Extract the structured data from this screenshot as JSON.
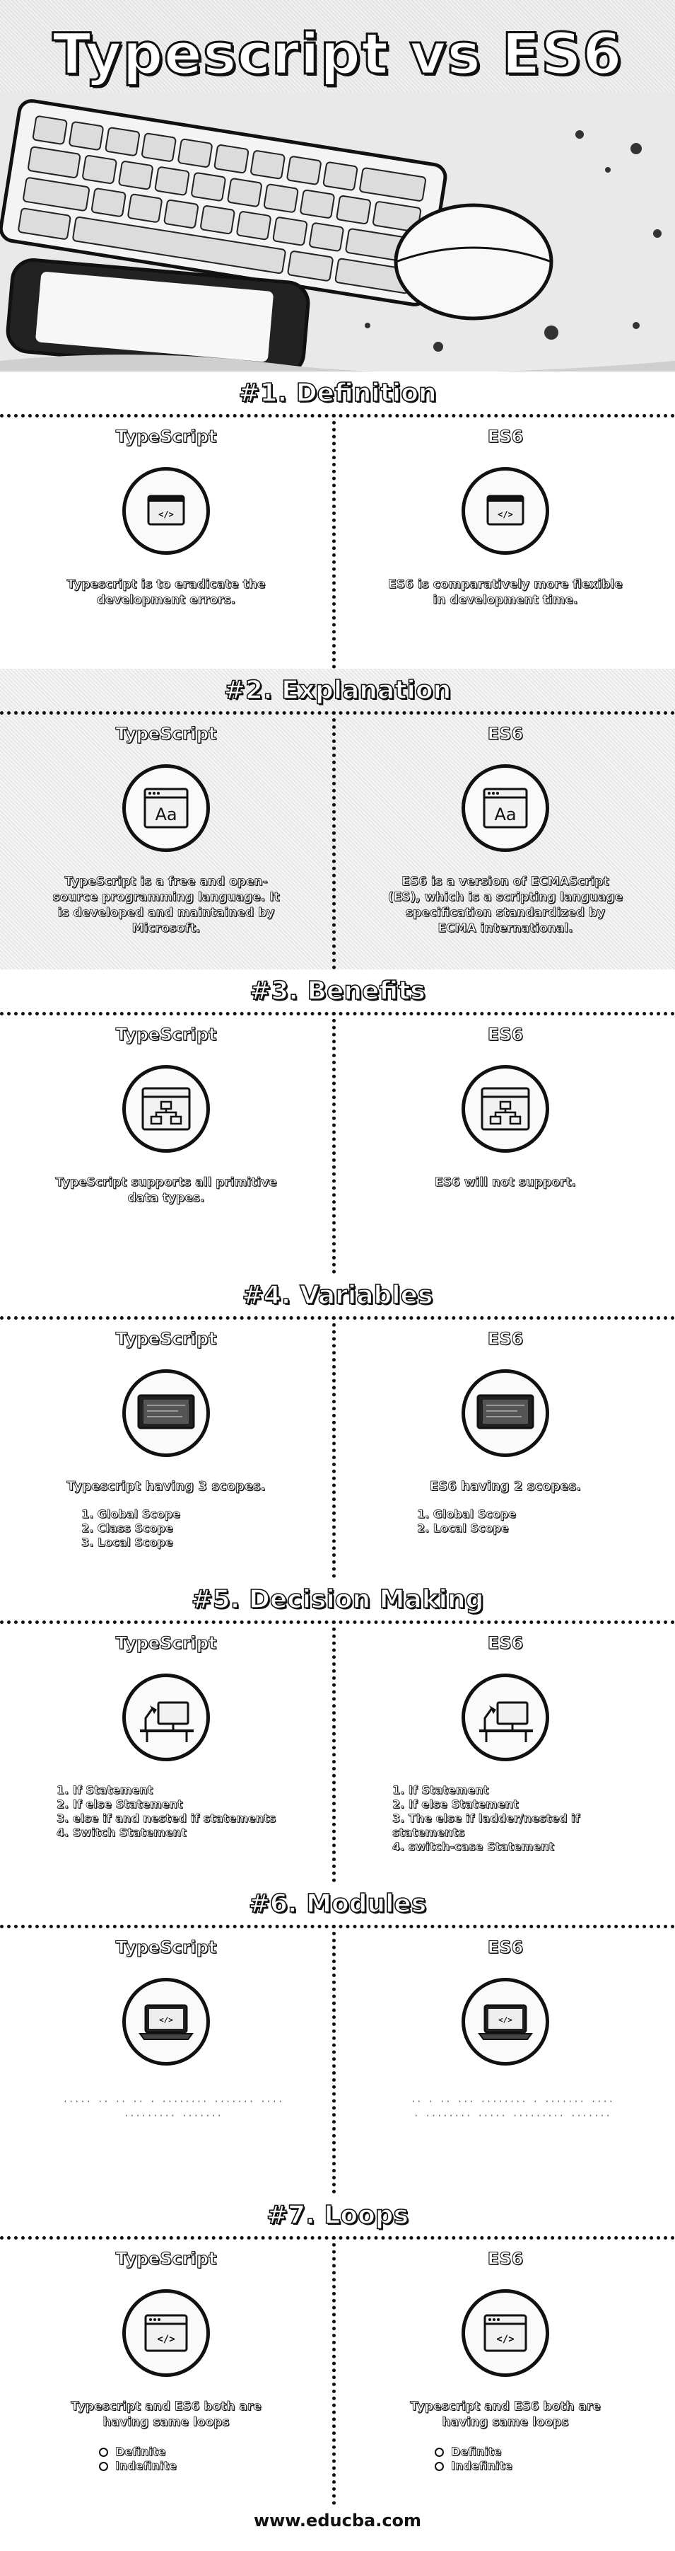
{
  "header": {
    "title": "Typescript vs ES6"
  },
  "sections": [
    {
      "title": "#1. Definition",
      "left": {
        "heading": "TypeScript",
        "text": "Typescript is to eradicate the development errors."
      },
      "right": {
        "heading": "ES6",
        "text": "ES6 is comparatively more flexible in development time."
      }
    },
    {
      "title": "#2. Explanation",
      "left": {
        "heading": "TypeScript",
        "text": "TypeScript is a free and open-source programming language. It is developed and maintained by Microsoft."
      },
      "right": {
        "heading": "ES6",
        "text": "ES6 is a version of ECMAScript (ES), which is a scripting language specification standardized by ECMA international."
      }
    },
    {
      "title": "#3. Benefits",
      "left": {
        "heading": "TypeScript",
        "text": "TypeScript supports all primitive data types."
      },
      "right": {
        "heading": "ES6",
        "text": "ES6 will not support."
      }
    },
    {
      "title": "#4. Variables",
      "left": {
        "heading": "TypeScript",
        "lead": "Typescript having 3 scopes.",
        "items": [
          "1. Global Scope",
          "2. Class Scope",
          "3. Local Scope"
        ]
      },
      "right": {
        "heading": "ES6",
        "lead": "ES6 having 2 scopes.",
        "items": [
          "1. Global Scope",
          "2. Local Scope"
        ]
      }
    },
    {
      "title": "#5. Decision Making",
      "left": {
        "heading": "TypeScript",
        "items": [
          "1. If Statement",
          "2. If else Statement",
          "3. else if and nested if statements",
          "4. Switch Statement"
        ]
      },
      "right": {
        "heading": "ES6",
        "items": [
          "1. If Statement",
          "2. If else Statement",
          "3. The else if ladder/nested if statements",
          "4. switch-case Statement"
        ]
      }
    },
    {
      "title": "#6. Modules",
      "left": {
        "heading": "TypeScript"
      },
      "right": {
        "heading": "ES6"
      }
    },
    {
      "title": "#7. Loops",
      "left": {
        "heading": "TypeScript",
        "text": "Typescript and ES6 both are having same loops",
        "items": [
          "Definite",
          "Indefinite"
        ]
      },
      "right": {
        "heading": "ES6",
        "text": "Typescript and ES6 both are having same loops",
        "items": [
          "Definite",
          "Indefinite"
        ]
      }
    }
  ],
  "footer": {
    "text": "www.educba.com"
  }
}
